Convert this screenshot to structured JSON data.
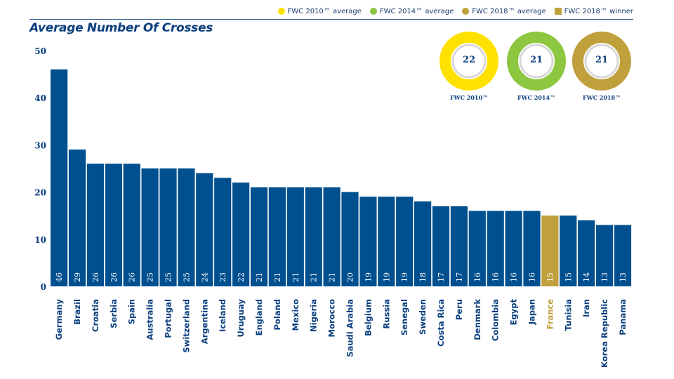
{
  "legend": {
    "items": [
      {
        "label": "FWC 2010™ average",
        "color": "#FFE100",
        "shape": "circle"
      },
      {
        "label": "FWC 2014™ average",
        "color": "#8DC63F",
        "shape": "circle"
      },
      {
        "label": "FWC 2018™ average",
        "color": "#C0A03C",
        "shape": "circle"
      },
      {
        "label": "FWC 2018™ winner",
        "color": "#C0A03C",
        "shape": "square"
      }
    ]
  },
  "donuts": [
    {
      "label": "FWC 2010™",
      "value": "22",
      "color": "#FFE100"
    },
    {
      "label": "FWC 2014™",
      "value": "21",
      "color": "#8DC63F"
    },
    {
      "label": "FWC 2018™",
      "value": "21",
      "color": "#C0A03C"
    }
  ],
  "colors": {
    "bar": "#00508F",
    "highlight_bar": "#C0A03C",
    "text": "#0b3f7f"
  },
  "chart_data": {
    "type": "bar",
    "title": "Average Number Of Crosses",
    "ylim": [
      0,
      50
    ],
    "yticks": [
      0,
      10,
      20,
      30,
      40,
      50
    ],
    "grid": false,
    "legend_position": "top-right",
    "highlight": "France",
    "categories": [
      "Germany",
      "Brazil",
      "Croatia",
      "Serbia",
      "Spain",
      "Australia",
      "Portugal",
      "Switzerland",
      "Argentina",
      "Iceland",
      "Uruguay",
      "England",
      "Poland",
      "Mexico",
      "Nigeria",
      "Morocco",
      "Saudi Arabia",
      "Belgium",
      "Russia",
      "Senegal",
      "Sweden",
      "Costa Rica",
      "Peru",
      "Denmark",
      "Colombia",
      "Egypt",
      "Japan",
      "France",
      "Tunisia",
      "Iran",
      "Korea Republic",
      "Panama"
    ],
    "values": [
      46,
      29,
      26,
      26,
      26,
      25,
      25,
      25,
      24,
      23,
      22,
      21,
      21,
      21,
      21,
      21,
      20,
      19,
      19,
      19,
      18,
      17,
      17,
      16,
      16,
      16,
      16,
      15,
      15,
      14,
      13,
      13
    ]
  }
}
